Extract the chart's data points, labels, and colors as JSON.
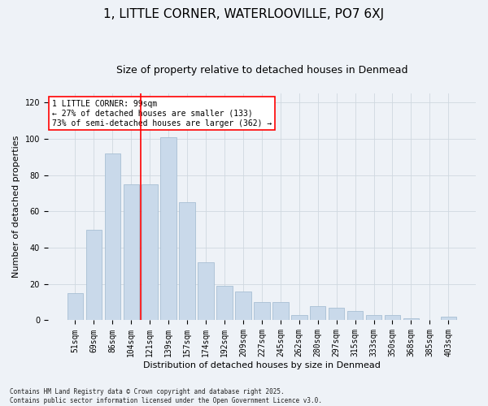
{
  "title": "1, LITTLE CORNER, WATERLOOVILLE, PO7 6XJ",
  "subtitle": "Size of property relative to detached houses in Denmead",
  "xlabel": "Distribution of detached houses by size in Denmead",
  "ylabel": "Number of detached properties",
  "categories": [
    "51sqm",
    "69sqm",
    "86sqm",
    "104sqm",
    "121sqm",
    "139sqm",
    "157sqm",
    "174sqm",
    "192sqm",
    "209sqm",
    "227sqm",
    "245sqm",
    "262sqm",
    "280sqm",
    "297sqm",
    "315sqm",
    "333sqm",
    "350sqm",
    "368sqm",
    "385sqm",
    "403sqm"
  ],
  "values": [
    15,
    50,
    92,
    75,
    75,
    101,
    65,
    32,
    19,
    16,
    10,
    10,
    3,
    8,
    7,
    5,
    3,
    3,
    1,
    0,
    2
  ],
  "bar_color": "#c9d9ea",
  "bar_edgecolor": "#a8bfd4",
  "vline_x": 3.5,
  "vline_color": "red",
  "annotation_text": "1 LITTLE CORNER: 99sqm\n← 27% of detached houses are smaller (133)\n73% of semi-detached houses are larger (362) →",
  "annotation_box_color": "white",
  "annotation_box_edgecolor": "red",
  "ylim": [
    0,
    125
  ],
  "yticks": [
    0,
    20,
    40,
    60,
    80,
    100,
    120
  ],
  "grid_color": "#d0d8e0",
  "bg_color": "#eef2f7",
  "footnote": "Contains HM Land Registry data © Crown copyright and database right 2025.\nContains public sector information licensed under the Open Government Licence v3.0.",
  "title_fontsize": 11,
  "subtitle_fontsize": 9,
  "label_fontsize": 8,
  "tick_fontsize": 7,
  "annotation_fontsize": 7,
  "footnote_fontsize": 5.5
}
